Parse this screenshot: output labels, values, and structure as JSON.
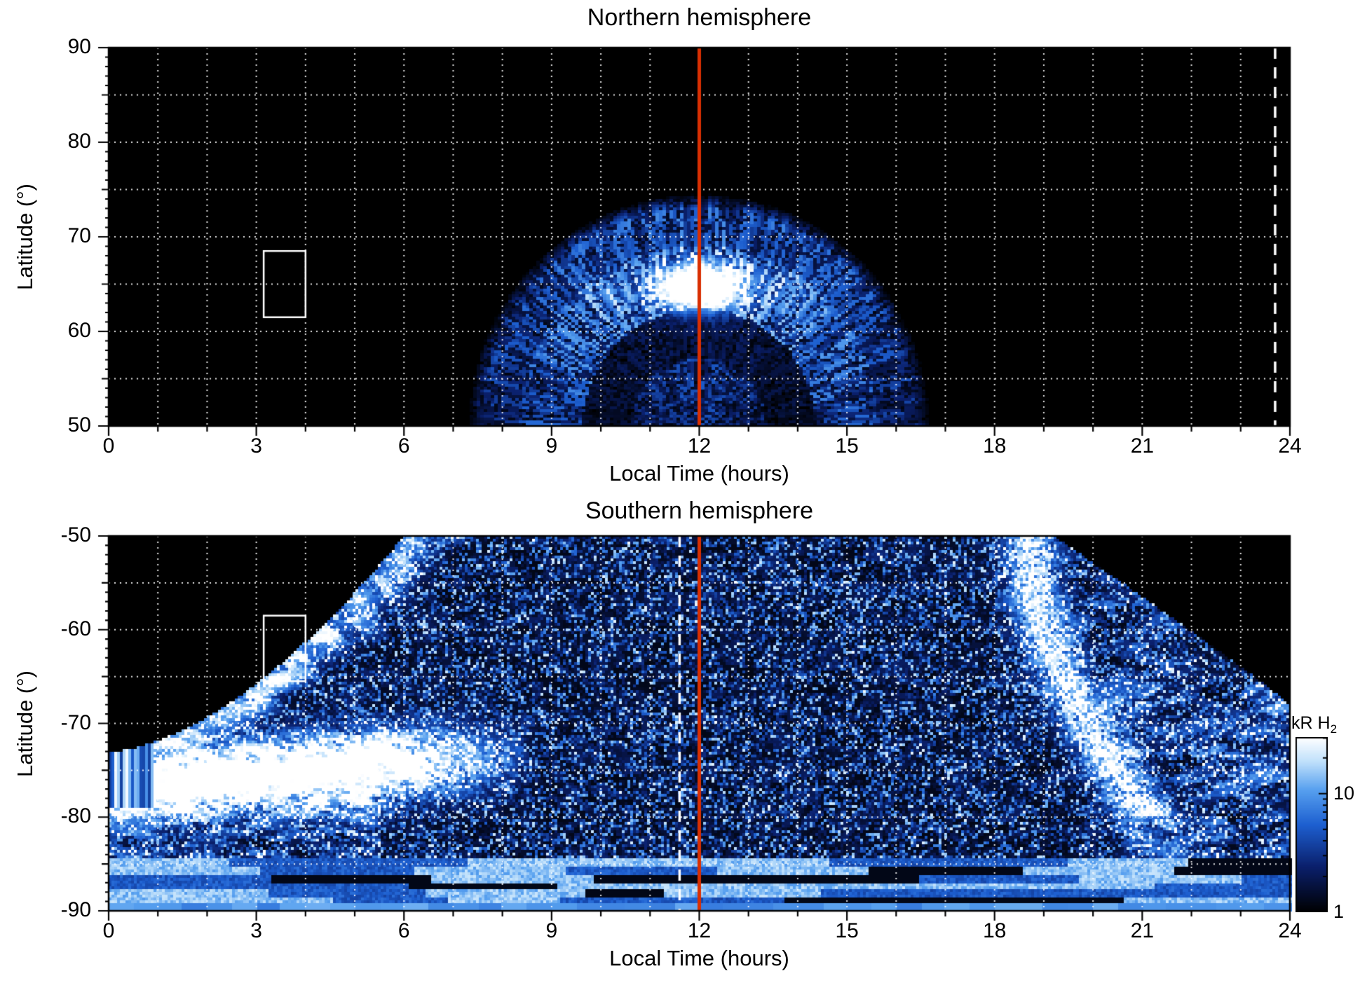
{
  "figure": {
    "description": "Two-panel heatmap of H2 auroral emission brightness versus local time and latitude",
    "background": "#ffffff"
  },
  "chart_data": [
    {
      "type": "heatmap",
      "panel": "northern",
      "title": "Northern hemisphere",
      "xlabel": "Local Time (hours)",
      "ylabel": "Latitude (°)",
      "xlim": [
        0,
        24
      ],
      "ylim": [
        50,
        90
      ],
      "xticks": [
        0,
        3,
        6,
        9,
        12,
        15,
        18,
        21,
        24
      ],
      "yticks": [
        90,
        80,
        70,
        60,
        50
      ],
      "grid": {
        "x_step_hours": 1,
        "y_step_degrees": 5,
        "style": "white dotted"
      },
      "reference_lines": [
        {
          "orientation": "vertical",
          "x_hours": 12,
          "style": "solid",
          "color": "#d92f02",
          "name": "noon-meridian"
        },
        {
          "orientation": "vertical",
          "x_hours": 23.7,
          "style": "dashed",
          "color": "#ffffff"
        }
      ],
      "highlight_box": {
        "x_hours": [
          3.15,
          4.0
        ],
        "latitude_deg": [
          61.5,
          68.5
        ],
        "color": "#ffffff"
      },
      "background_color": "#000000",
      "emission_features": {
        "shape": "dayside dome of emission centred on 12 h local time",
        "local_time_extent_hours": [
          7.8,
          16.6
        ],
        "max_latitude_deg": 73.5,
        "bright_arc_latitude_deg": [
          62,
          69
        ],
        "dark_gap_latitude_deg": [
          57,
          62
        ],
        "brightest_spot": {
          "local_time_hours": 12.0,
          "latitude_deg": 65
        }
      }
    },
    {
      "type": "heatmap",
      "panel": "southern",
      "title": "Southern hemisphere",
      "xlabel": "Local Time (hours)",
      "ylabel": "Latitude (°)",
      "xlim": [
        0,
        24
      ],
      "ylim": [
        -90,
        -50
      ],
      "xticks": [
        0,
        3,
        6,
        9,
        12,
        15,
        18,
        21,
        24
      ],
      "yticks": [
        -50,
        -60,
        -70,
        -80,
        -90
      ],
      "grid": {
        "x_step_hours": 1,
        "y_step_degrees": 5,
        "style": "white dotted"
      },
      "reference_lines": [
        {
          "orientation": "vertical",
          "x_hours": 12,
          "style": "solid",
          "color": "#d92f02",
          "name": "noon-meridian"
        },
        {
          "orientation": "vertical",
          "x_hours": 11.6,
          "style": "dashed",
          "color": "#ffffff"
        }
      ],
      "highlight_box": {
        "x_hours": [
          3.15,
          4.0
        ],
        "latitude_deg": [
          -65.5,
          -58.5
        ],
        "color": "#ffffff"
      },
      "background_color": "#000000",
      "emission_features": {
        "shape": "speckled emission over most local times with bright dawn-sector band and arcs",
        "bright_dawn_band": {
          "local_time_hours": [
            0,
            8.5
          ],
          "latitude_deg": [
            -81,
            -73
          ]
        },
        "dusk_arc_local_time_hours": [
          18.6,
          20.5
        ],
        "dark_region_dawn": {
          "local_time_hours": [
            0,
            5.5
          ],
          "latitude_deg": [
            -72,
            -50
          ]
        },
        "dark_region_dusk": {
          "local_time_hours": [
            19.5,
            24
          ],
          "latitude_deg": [
            -66,
            -50
          ]
        },
        "banded_zone_latitude_deg": [
          -90,
          -84
        ]
      }
    }
  ],
  "colorbar": {
    "label_main": "kR H",
    "label_sub": "2",
    "scale": "log",
    "value_range": [
      1,
      30
    ],
    "tick_labels": [
      {
        "text": "10",
        "value": 10
      },
      {
        "text": "1",
        "value": 1
      }
    ],
    "colormap_stops": [
      {
        "t": 0.0,
        "color": "#000000"
      },
      {
        "t": 0.26,
        "color": "#0a1f6b"
      },
      {
        "t": 0.5,
        "color": "#1d5fd0"
      },
      {
        "t": 0.7,
        "color": "#57a0ef"
      },
      {
        "t": 0.86,
        "color": "#bfe0fb"
      },
      {
        "t": 1.0,
        "color": "#ffffff"
      }
    ]
  }
}
